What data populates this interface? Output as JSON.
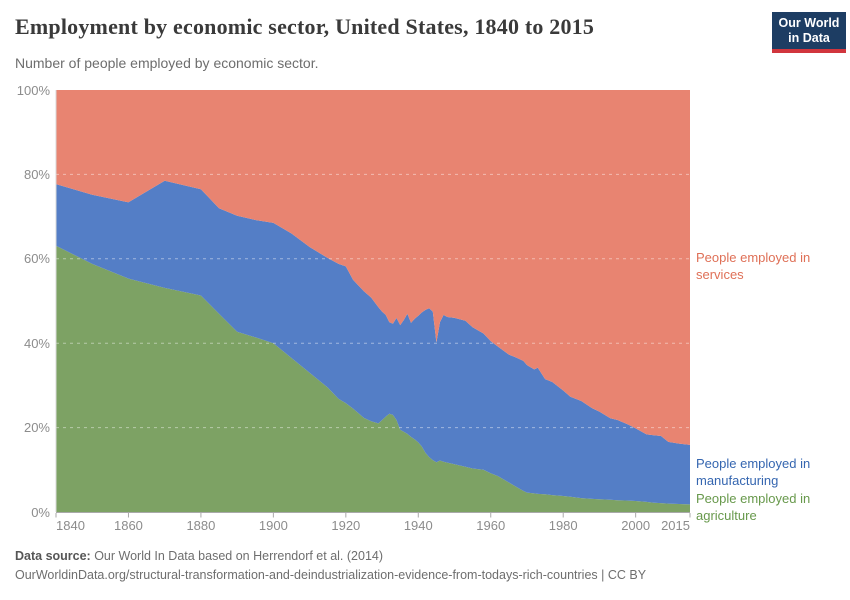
{
  "header": {
    "title": "Employment by economic sector, United States, 1840 to 2015",
    "subtitle": "Number of people employed by economic sector.",
    "logo": {
      "line1": "Our World",
      "line2": "in Data",
      "bg_color": "#1d3d63",
      "accent_color": "#d1353d"
    }
  },
  "chart_data": {
    "type": "area",
    "stacked": true,
    "normalized": true,
    "unit": "%",
    "xlim": [
      1840,
      2015
    ],
    "ylim": [
      0,
      100
    ],
    "grid": "dashed-horizontal",
    "grid_values": [
      20,
      40,
      60,
      80
    ],
    "legend_position": "right",
    "x": [
      1840,
      1850,
      1860,
      1870,
      1880,
      1885,
      1890,
      1895,
      1900,
      1905,
      1910,
      1915,
      1918,
      1920,
      1922,
      1925,
      1927,
      1929,
      1930,
      1931,
      1932,
      1933,
      1934,
      1935,
      1936,
      1937,
      1938,
      1939,
      1940,
      1941,
      1942,
      1943,
      1944,
      1945,
      1946,
      1947,
      1948,
      1950,
      1953,
      1955,
      1958,
      1960,
      1962,
      1965,
      1967,
      1969,
      1970,
      1972,
      1973,
      1975,
      1977,
      1980,
      1982,
      1985,
      1988,
      1990,
      1993,
      1995,
      1998,
      2000,
      2003,
      2005,
      2007,
      2009,
      2012,
      2015
    ],
    "series": [
      {
        "name": "People employed in agriculture",
        "color": "#7da264",
        "label_color": "#68994c",
        "values": [
          63.1,
          58.8,
          55.3,
          53.1,
          51.3,
          47.0,
          42.7,
          41.4,
          40.0,
          36.5,
          33.0,
          29.5,
          26.8,
          25.8,
          24.5,
          22.3,
          21.5,
          21.0,
          21.8,
          22.6,
          23.3,
          23.0,
          21.8,
          19.5,
          19.0,
          18.5,
          17.8,
          17.2,
          16.5,
          15.5,
          14.0,
          13.0,
          12.3,
          11.8,
          12.2,
          11.9,
          11.7,
          11.3,
          10.7,
          10.3,
          10.0,
          9.2,
          8.5,
          7.0,
          6.0,
          5.0,
          4.6,
          4.4,
          4.3,
          4.2,
          4.0,
          3.8,
          3.6,
          3.3,
          3.1,
          3.0,
          2.9,
          2.8,
          2.7,
          2.6,
          2.4,
          2.2,
          2.1,
          2.0,
          1.9,
          1.8
        ]
      },
      {
        "name": "People employed in manufacturing",
        "color": "#547ec6",
        "label_color": "#3566b0",
        "values": [
          14.6,
          16.4,
          18.1,
          25.4,
          25.2,
          25.0,
          27.5,
          27.8,
          28.5,
          29.5,
          29.8,
          30.7,
          32.0,
          32.4,
          30.5,
          30.0,
          29.3,
          27.5,
          25.7,
          24.1,
          21.7,
          21.6,
          24.2,
          24.8,
          26.5,
          28.5,
          27.0,
          28.6,
          30.0,
          31.8,
          33.9,
          35.3,
          35.2,
          28.4,
          32.8,
          34.8,
          34.5,
          34.7,
          34.6,
          33.5,
          32.3,
          31.3,
          30.7,
          30.3,
          30.6,
          30.8,
          30.2,
          29.4,
          29.9,
          27.3,
          26.8,
          25.0,
          23.7,
          23.0,
          21.5,
          20.8,
          19.3,
          19.0,
          18.0,
          17.2,
          16.0,
          16.0,
          15.9,
          14.6,
          14.3,
          14.1
        ]
      },
      {
        "name": "People employed in services",
        "color": "#e88471",
        "label_color": "#df7057",
        "values": [
          22.3,
          24.8,
          26.6,
          21.5,
          23.5,
          28.0,
          29.8,
          30.8,
          31.5,
          34.0,
          37.2,
          39.8,
          41.2,
          41.8,
          45.0,
          47.7,
          49.2,
          51.5,
          52.5,
          53.3,
          55.0,
          55.4,
          54.0,
          55.7,
          54.5,
          53.0,
          55.2,
          54.2,
          53.5,
          52.7,
          52.1,
          51.7,
          52.5,
          59.8,
          55.0,
          53.3,
          53.8,
          54.0,
          54.7,
          56.2,
          57.7,
          59.5,
          60.8,
          62.7,
          63.4,
          64.2,
          65.2,
          66.2,
          65.8,
          68.5,
          69.2,
          71.2,
          72.7,
          73.7,
          75.4,
          76.2,
          77.8,
          78.2,
          79.3,
          80.2,
          81.6,
          81.8,
          82.0,
          83.4,
          83.8,
          84.1
        ]
      }
    ],
    "y_ticks": [
      {
        "label": "0%",
        "value": 0
      },
      {
        "label": "20%",
        "value": 20
      },
      {
        "label": "40%",
        "value": 40
      },
      {
        "label": "60%",
        "value": 60
      },
      {
        "label": "80%",
        "value": 80
      },
      {
        "label": "100%",
        "value": 100
      }
    ],
    "x_ticks": [
      {
        "label": "1840",
        "value": 1840
      },
      {
        "label": "1860",
        "value": 1860
      },
      {
        "label": "1880",
        "value": 1880
      },
      {
        "label": "1900",
        "value": 1900
      },
      {
        "label": "1920",
        "value": 1920
      },
      {
        "label": "1940",
        "value": 1940
      },
      {
        "label": "1960",
        "value": 1960
      },
      {
        "label": "1980",
        "value": 1980
      },
      {
        "label": "2000",
        "value": 2000
      },
      {
        "label": "2015",
        "value": 2015
      }
    ],
    "axis_colors": {
      "tick_text": "#8c8c8c",
      "axis_line": "#a9a9a9",
      "left_axis_line": "#d9d9d9"
    }
  },
  "legend": {
    "items": [
      {
        "label": "People employed in services",
        "series_index": 2
      },
      {
        "label": "People employed in manufacturing",
        "series_index": 1
      },
      {
        "label": "People employed in agriculture",
        "series_index": 0
      }
    ]
  },
  "footer": {
    "source_label": "Data source:",
    "source_text": " Our World In Data based on Herrendorf et al. (2014)",
    "url_text": "OurWorldinData.org/structural-transformation-and-deindustrialization-evidence-from-todays-rich-countries | CC BY"
  }
}
